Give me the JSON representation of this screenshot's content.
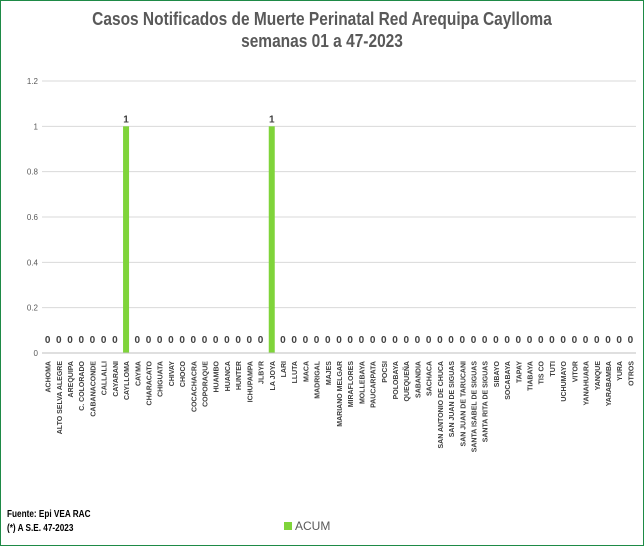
{
  "chart_data": {
    "type": "bar",
    "title": "Casos Notificados de Muerte Perinatal Red Arequipa Caylloma",
    "subtitle": "semanas 01 a 47-2023",
    "xlabel": "",
    "ylabel": "",
    "ylim": [
      0,
      1.2
    ],
    "yticks": [
      "0",
      "0.2",
      "0.4",
      "0.6",
      "0.8",
      "1",
      "1.2"
    ],
    "grid": true,
    "legend_position": "bottom",
    "categories": [
      "ACHOMA",
      "ALTO SELVA ALEGRE",
      "AREQUIPA",
      "C. COLORADO",
      "CABANACONDE",
      "CALLALLI",
      "CAYARANI",
      "CAYLLOMA",
      "CAYMA",
      "CHARACATO",
      "CHIGUATA",
      "CHIVAY",
      "CHOCO",
      "COCACHACRA",
      "COPORAQUE",
      "HUAMBO",
      "HUANCA",
      "HUNTER",
      "ICHUPAMPA",
      "JLBYR",
      "LA JOYA",
      "LARI",
      "LLUTA",
      "MACA",
      "MADRIGAL",
      "MAJES",
      "MARIANO MELGAR",
      "MIRAFLORES",
      "MOLLEBAYA",
      "PAUCARPATA",
      "POCSI",
      "POLOBAYA",
      "QUEQUEÑA",
      "SABANDIA",
      "SACHACA",
      "SAN ANTONIO DE CHUCA",
      "SAN JUAN DE SIGUAS",
      "SAN JUAN DE TARUCANI",
      "SANTA ISABEL DE SIGUAS",
      "SANTA RITA DE SIGUAS",
      "SIBAYO",
      "SOCABAYA",
      "TAPAY",
      "TIABAYA",
      "TIS CO",
      "TUTI",
      "UCHUMAYO",
      "VITOR",
      "YANAHUARA",
      "YANQUE",
      "YARABAMBA",
      "YURA",
      "OTROS"
    ],
    "series": [
      {
        "name": "ACUM",
        "color": "#7fd43a",
        "values": [
          0,
          0,
          0,
          0,
          0,
          0,
          0,
          1,
          0,
          0,
          0,
          0,
          0,
          0,
          0,
          0,
          0,
          0,
          0,
          0,
          1,
          0,
          0,
          0,
          0,
          0,
          0,
          0,
          0,
          0,
          0,
          0,
          0,
          0,
          0,
          0,
          0,
          0,
          0,
          0,
          0,
          0,
          0,
          0,
          0,
          0,
          0,
          0,
          0,
          0,
          0,
          0,
          0
        ]
      }
    ]
  },
  "footer": {
    "source": "Fuente: Epi VEA RAC",
    "note": "(*) A S.E. 47-2023"
  }
}
